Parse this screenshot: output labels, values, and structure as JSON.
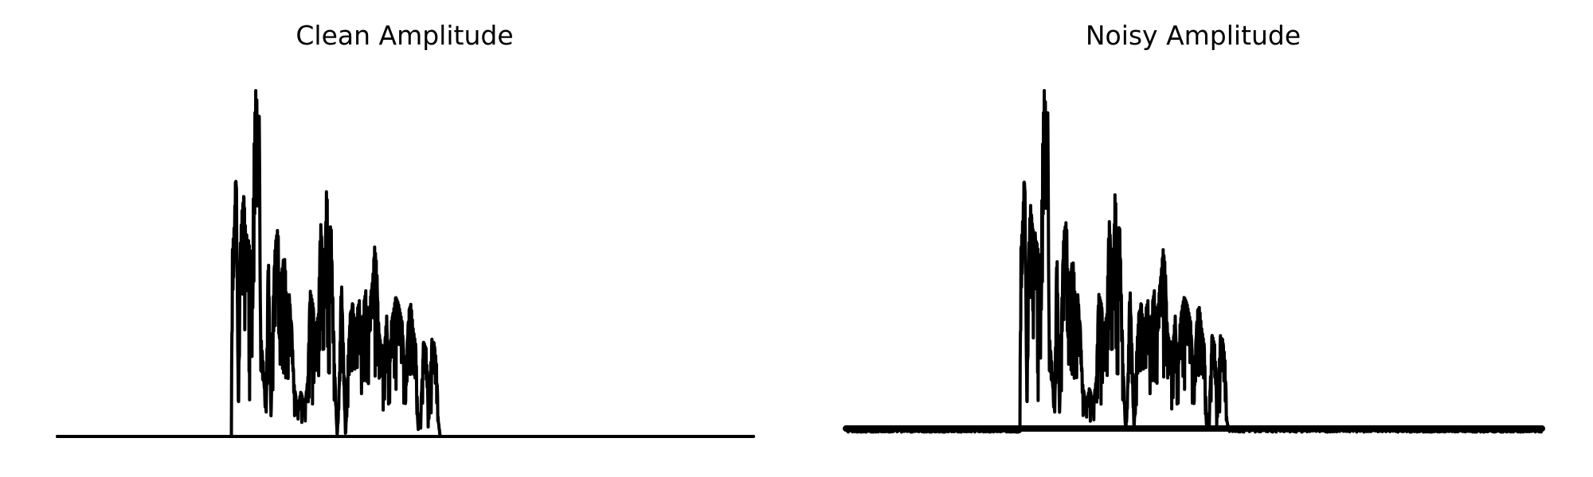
{
  "chart_data": [
    {
      "type": "line",
      "title": "Clean Amplitude",
      "xlabel": "",
      "ylabel": "",
      "axes_visible": false,
      "grid": false,
      "legend": "none",
      "line_color": "#000000",
      "x_range": [
        0,
        1
      ],
      "ylim": [
        0,
        1
      ],
      "noise_floor": 0.0,
      "speech_range": [
        0.25,
        0.79
      ],
      "envelope": [
        [
          0.25,
          0.0
        ],
        [
          0.251,
          0.52
        ],
        [
          0.254,
          0.6
        ],
        [
          0.257,
          0.78
        ],
        [
          0.26,
          0.1
        ],
        [
          0.263,
          0.55
        ],
        [
          0.265,
          0.64
        ],
        [
          0.268,
          0.69
        ],
        [
          0.271,
          0.56
        ],
        [
          0.275,
          0.56
        ],
        [
          0.28,
          0.47
        ],
        [
          0.283,
          0.88
        ],
        [
          0.285,
          0.99
        ],
        [
          0.288,
          0.89
        ],
        [
          0.29,
          0.92
        ],
        [
          0.292,
          0.3
        ],
        [
          0.296,
          0.2
        ],
        [
          0.3,
          0.07
        ],
        [
          0.303,
          0.54
        ],
        [
          0.307,
          0.05
        ],
        [
          0.31,
          0.38
        ],
        [
          0.313,
          0.55
        ],
        [
          0.317,
          0.6
        ],
        [
          0.32,
          0.33
        ],
        [
          0.323,
          0.48
        ],
        [
          0.327,
          0.51
        ],
        [
          0.33,
          0.35
        ],
        [
          0.333,
          0.4
        ],
        [
          0.337,
          0.3
        ],
        [
          0.34,
          0.15
        ],
        [
          0.345,
          0.08
        ],
        [
          0.35,
          0.13
        ],
        [
          0.355,
          0.08
        ],
        [
          0.36,
          0.17
        ],
        [
          0.363,
          0.42
        ],
        [
          0.367,
          0.38
        ],
        [
          0.37,
          0.3
        ],
        [
          0.375,
          0.35
        ],
        [
          0.378,
          0.62
        ],
        [
          0.381,
          0.53
        ],
        [
          0.384,
          0.45
        ],
        [
          0.387,
          0.73
        ],
        [
          0.39,
          0.5
        ],
        [
          0.393,
          0.63
        ],
        [
          0.395,
          0.46
        ],
        [
          0.398,
          0.21
        ],
        [
          0.402,
          0.0
        ],
        [
          0.405,
          0.15
        ],
        [
          0.408,
          0.46
        ],
        [
          0.411,
          0.25
        ],
        [
          0.414,
          0.0
        ],
        [
          0.418,
          0.25
        ],
        [
          0.421,
          0.35
        ],
        [
          0.425,
          0.38
        ],
        [
          0.428,
          0.26
        ],
        [
          0.431,
          0.36
        ],
        [
          0.434,
          0.39
        ],
        [
          0.437,
          0.25
        ],
        [
          0.44,
          0.36
        ],
        [
          0.443,
          0.42
        ],
        [
          0.446,
          0.3
        ],
        [
          0.45,
          0.4
        ],
        [
          0.453,
          0.45
        ],
        [
          0.456,
          0.55
        ],
        [
          0.459,
          0.46
        ],
        [
          0.462,
          0.3
        ],
        [
          0.465,
          0.26
        ],
        [
          0.47,
          0.25
        ],
        [
          0.473,
          0.35
        ],
        [
          0.476,
          0.14
        ],
        [
          0.48,
          0.33
        ],
        [
          0.483,
          0.36
        ],
        [
          0.486,
          0.4
        ],
        [
          0.49,
          0.38
        ],
        [
          0.495,
          0.33
        ],
        [
          0.5,
          0.15
        ],
        [
          0.505,
          0.36
        ],
        [
          0.508,
          0.38
        ],
        [
          0.511,
          0.31
        ],
        [
          0.515,
          0.26
        ],
        [
          0.518,
          0.03
        ],
        [
          0.522,
          0.07
        ],
        [
          0.526,
          0.27
        ],
        [
          0.53,
          0.25
        ],
        [
          0.533,
          0.07
        ],
        [
          0.538,
          0.27
        ],
        [
          0.541,
          0.27
        ],
        [
          0.545,
          0.2
        ],
        [
          0.547,
          0.05
        ],
        [
          0.55,
          0.0
        ],
        [
          0.79,
          0.0
        ]
      ]
    },
    {
      "type": "line",
      "title": "Noisy Amplitude",
      "xlabel": "",
      "ylabel": "",
      "axes_visible": false,
      "grid": false,
      "legend": "none",
      "line_color": "#000000",
      "x_range": [
        0,
        1
      ],
      "ylim": [
        0,
        1
      ],
      "noise_floor": 0.022,
      "speech_range": [
        0.25,
        0.79
      ],
      "envelope": [
        [
          0.25,
          0.02
        ],
        [
          0.251,
          0.52
        ],
        [
          0.254,
          0.62
        ],
        [
          0.257,
          0.77
        ],
        [
          0.26,
          0.1
        ],
        [
          0.263,
          0.55
        ],
        [
          0.265,
          0.67
        ],
        [
          0.268,
          0.6
        ],
        [
          0.271,
          0.57
        ],
        [
          0.275,
          0.55
        ],
        [
          0.28,
          0.46
        ],
        [
          0.283,
          0.88
        ],
        [
          0.285,
          0.99
        ],
        [
          0.288,
          0.88
        ],
        [
          0.29,
          0.93
        ],
        [
          0.292,
          0.3
        ],
        [
          0.296,
          0.2
        ],
        [
          0.3,
          0.07
        ],
        [
          0.303,
          0.55
        ],
        [
          0.307,
          0.06
        ],
        [
          0.31,
          0.37
        ],
        [
          0.313,
          0.58
        ],
        [
          0.317,
          0.62
        ],
        [
          0.32,
          0.33
        ],
        [
          0.323,
          0.47
        ],
        [
          0.327,
          0.5
        ],
        [
          0.33,
          0.36
        ],
        [
          0.333,
          0.4
        ],
        [
          0.337,
          0.3
        ],
        [
          0.34,
          0.15
        ],
        [
          0.345,
          0.09
        ],
        [
          0.35,
          0.14
        ],
        [
          0.355,
          0.09
        ],
        [
          0.36,
          0.17
        ],
        [
          0.363,
          0.41
        ],
        [
          0.367,
          0.38
        ],
        [
          0.37,
          0.3
        ],
        [
          0.375,
          0.35
        ],
        [
          0.378,
          0.63
        ],
        [
          0.381,
          0.53
        ],
        [
          0.384,
          0.45
        ],
        [
          0.387,
          0.72
        ],
        [
          0.39,
          0.49
        ],
        [
          0.393,
          0.63
        ],
        [
          0.395,
          0.47
        ],
        [
          0.398,
          0.21
        ],
        [
          0.402,
          0.01
        ],
        [
          0.405,
          0.15
        ],
        [
          0.408,
          0.44
        ],
        [
          0.411,
          0.25
        ],
        [
          0.414,
          0.02
        ],
        [
          0.418,
          0.26
        ],
        [
          0.421,
          0.35
        ],
        [
          0.425,
          0.38
        ],
        [
          0.428,
          0.26
        ],
        [
          0.431,
          0.36
        ],
        [
          0.434,
          0.39
        ],
        [
          0.437,
          0.25
        ],
        [
          0.44,
          0.36
        ],
        [
          0.443,
          0.42
        ],
        [
          0.446,
          0.3
        ],
        [
          0.45,
          0.41
        ],
        [
          0.453,
          0.47
        ],
        [
          0.456,
          0.54
        ],
        [
          0.459,
          0.46
        ],
        [
          0.462,
          0.3
        ],
        [
          0.465,
          0.27
        ],
        [
          0.47,
          0.26
        ],
        [
          0.473,
          0.35
        ],
        [
          0.476,
          0.14
        ],
        [
          0.48,
          0.32
        ],
        [
          0.483,
          0.37
        ],
        [
          0.486,
          0.4
        ],
        [
          0.49,
          0.38
        ],
        [
          0.495,
          0.33
        ],
        [
          0.5,
          0.15
        ],
        [
          0.505,
          0.36
        ],
        [
          0.508,
          0.37
        ],
        [
          0.511,
          0.31
        ],
        [
          0.515,
          0.26
        ],
        [
          0.518,
          0.03
        ],
        [
          0.522,
          0.07
        ],
        [
          0.526,
          0.29
        ],
        [
          0.53,
          0.26
        ],
        [
          0.533,
          0.08
        ],
        [
          0.538,
          0.28
        ],
        [
          0.541,
          0.28
        ],
        [
          0.545,
          0.21
        ],
        [
          0.547,
          0.05
        ],
        [
          0.55,
          0.02
        ],
        [
          0.79,
          0.02
        ]
      ]
    }
  ]
}
